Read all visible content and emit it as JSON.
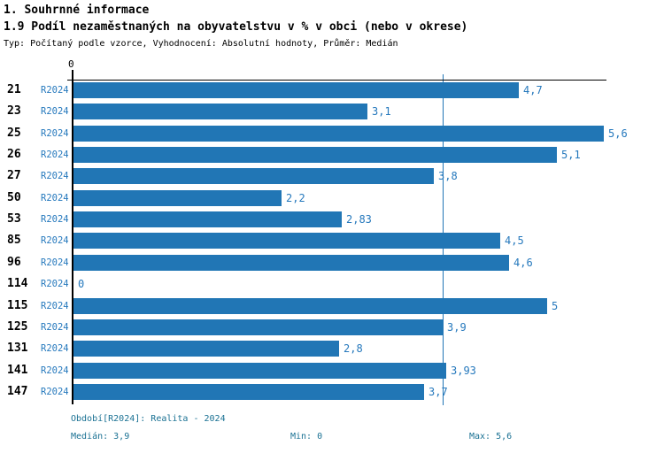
{
  "header": {
    "title": "1. Souhrnné informace",
    "subtitle": "1.9 Podíl nezaměstnaných na obyvatelstvu v % v obci (nebo v okrese)",
    "meta": "Typ: Počítaný podle vzorce, Vyhodnocení: Absolutní hodnoty, Průměr: Medián"
  },
  "chart_data": {
    "type": "bar",
    "orientation": "horizontal",
    "title": "1.9 Podíl nezaměstnaných na obyvatelstvu v % v obci (nebo v okrese)",
    "xlabel": "",
    "ylabel": "",
    "xlim": [
      0,
      5.6
    ],
    "axis_origin_label": "0",
    "grid": false,
    "median_reference_line": 3.9,
    "series_label": "R2024",
    "categories": [
      "21",
      "23",
      "25",
      "26",
      "27",
      "50",
      "53",
      "85",
      "96",
      "114",
      "115",
      "125",
      "131",
      "141",
      "147"
    ],
    "values": [
      4.7,
      3.1,
      5.6,
      5.1,
      3.8,
      2.2,
      2.83,
      4.5,
      4.6,
      0,
      5,
      3.9,
      2.8,
      3.93,
      3.7
    ],
    "value_labels": [
      "4,7",
      "3,1",
      "5,6",
      "5,1",
      "3,8",
      "2,2",
      "2,83",
      "4,5",
      "4,6",
      "0",
      "5",
      "3,9",
      "2,8",
      "3,93",
      "3,7"
    ]
  },
  "footer": {
    "period": "Období[R2024]: Realita - 2024",
    "median": "Medián: 3,9",
    "min": "Min: 0",
    "max": "Max: 5,6"
  },
  "colors": {
    "bar": "#2176b5",
    "label_blue": "#2679bd",
    "footer_blue": "#1a7193",
    "axis_black": "#000000"
  }
}
